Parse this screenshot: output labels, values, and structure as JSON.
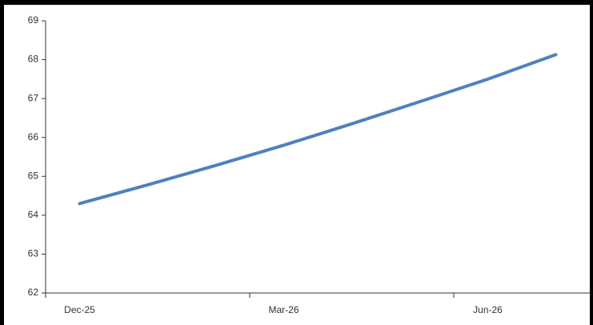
{
  "chart_data": {
    "type": "line",
    "categories": [
      "Dec-25",
      null,
      null,
      "Mar-26",
      null,
      null,
      "Jun-26",
      null
    ],
    "series": [
      {
        "color": "#4f81bd",
        "values": [
          64.3,
          64.78,
          65.28,
          65.8,
          66.35,
          66.92,
          67.5,
          68.13
        ]
      }
    ],
    "ylim": [
      62,
      69
    ],
    "yticks": [
      62,
      63,
      64,
      65,
      66,
      67,
      68,
      69
    ]
  }
}
